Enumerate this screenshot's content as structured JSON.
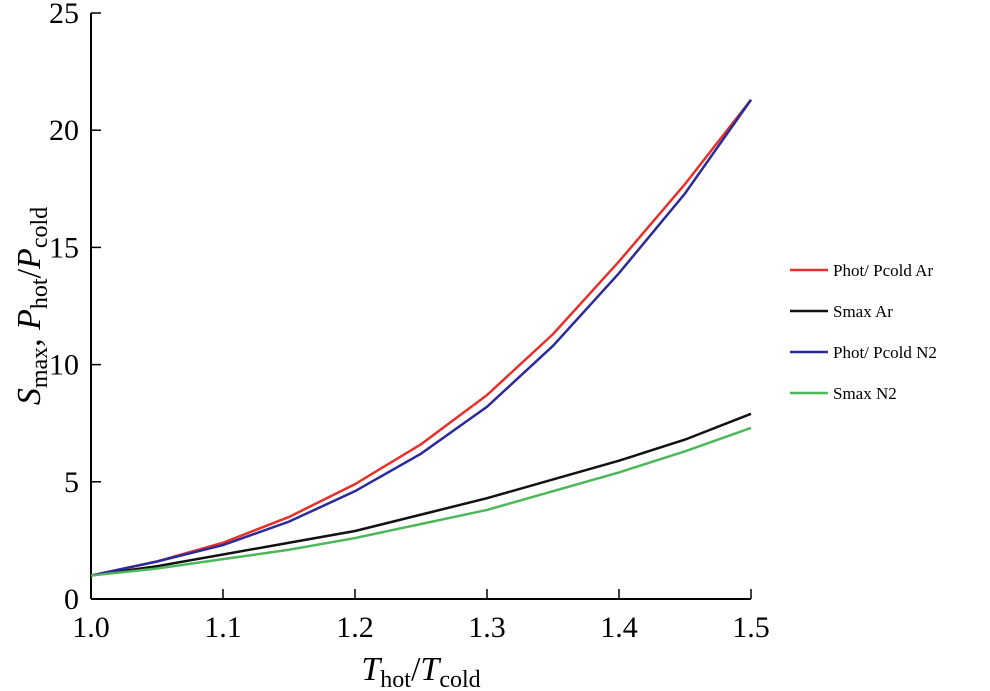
{
  "chart_data": {
    "type": "line",
    "xlabel": [
      "T",
      "hot",
      "/",
      "T",
      "cold"
    ],
    "ylabel": [
      "S",
      "max",
      ", ",
      "P",
      "hot",
      "/",
      "P",
      "cold"
    ],
    "x": [
      1.0,
      1.05,
      1.1,
      1.15,
      1.2,
      1.25,
      1.3,
      1.35,
      1.4,
      1.45,
      1.5
    ],
    "series": [
      {
        "name": "Phot/ Pcold Ar",
        "color": "#e8302a",
        "values": [
          1.0,
          1.6,
          2.4,
          3.5,
          4.9,
          6.6,
          8.7,
          11.3,
          14.4,
          17.7,
          21.3
        ]
      },
      {
        "name": "Smax Ar",
        "color": "#111111",
        "values": [
          1.0,
          1.4,
          1.9,
          2.4,
          2.9,
          3.6,
          4.3,
          5.1,
          5.9,
          6.8,
          7.9
        ]
      },
      {
        "name": "Phot/ Pcold N2",
        "color": "#2b2a9a",
        "values": [
          1.0,
          1.6,
          2.3,
          3.3,
          4.6,
          6.2,
          8.2,
          10.8,
          13.9,
          17.3,
          21.3
        ]
      },
      {
        "name": "Smax N2",
        "color": "#4cb85a",
        "values": [
          1.0,
          1.3,
          1.7,
          2.1,
          2.6,
          3.2,
          3.8,
          4.6,
          5.4,
          6.3,
          7.3
        ]
      }
    ],
    "xlim": [
      1.0,
      1.5
    ],
    "xticks": [
      {
        "value": 1.0,
        "label": "1.0"
      },
      1.1,
      1.2,
      1.3,
      1.4,
      1.5
    ],
    "ylim": [
      0,
      25
    ],
    "yticks": [
      0,
      5,
      10,
      15,
      20,
      25
    ],
    "legend": "right"
  }
}
